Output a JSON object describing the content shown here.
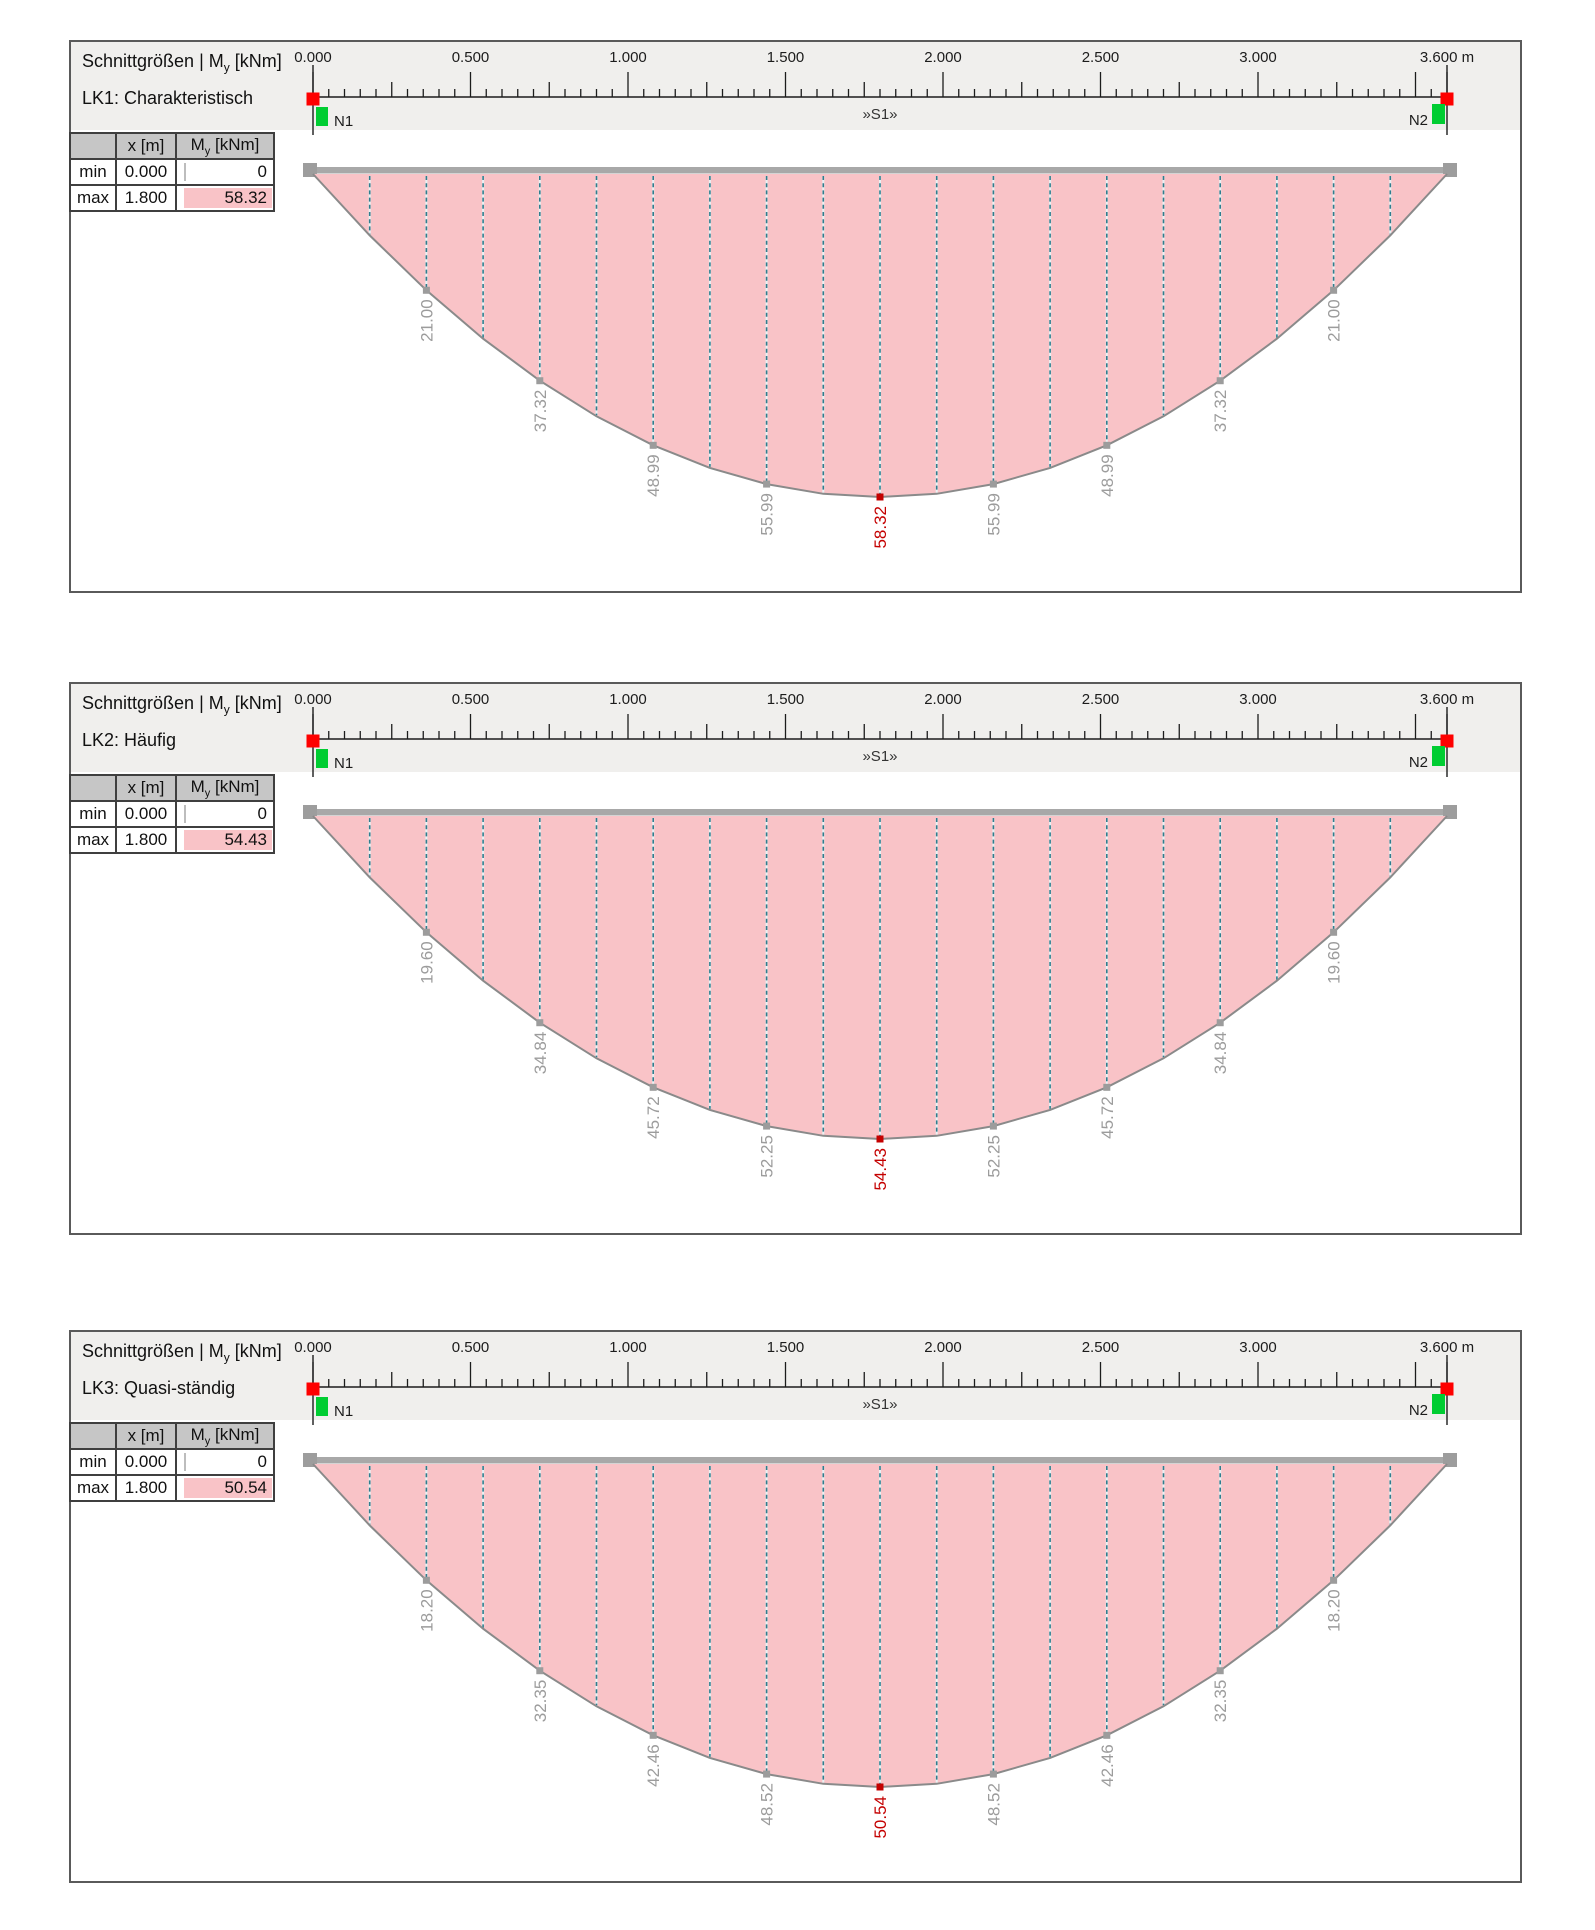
{
  "labels": {
    "title_name": "Schnittgrößen",
    "separator": "|",
    "moment_symbol": "M",
    "moment_sub": "y",
    "moment_unit": "[kNm]",
    "col_x": "x [m]",
    "row_min": "min",
    "row_max": "max",
    "node_start": "N1",
    "node_end": "N2",
    "member_label": "»S1»"
  },
  "ruler": {
    "length_m": 3.6,
    "minor_step_m": 0.05,
    "medium_step_m": 0.25,
    "major_step_m": 0.5,
    "labels": [
      {
        "v": 0.0,
        "t": "0.000"
      },
      {
        "v": 0.5,
        "t": "0.500"
      },
      {
        "v": 1.0,
        "t": "1.000"
      },
      {
        "v": 1.5,
        "t": "1.500"
      },
      {
        "v": 2.0,
        "t": "2.000"
      },
      {
        "v": 2.5,
        "t": "2.500"
      },
      {
        "v": 3.0,
        "t": "3.000"
      },
      {
        "v": 3.6,
        "t": "3.600 m"
      }
    ]
  },
  "colors": {
    "fill_pink": "#f9c3c7",
    "curve_grey": "#8a8a8a",
    "dash_teal": "#2f7e8e",
    "dash_underlay": "#e9f2f4",
    "label_grey": "#9c9c9c",
    "label_red": "#c40000",
    "node_red": "#fe0000",
    "node_green": "#00cd32",
    "beam_grey": "#a8a8a8",
    "beam_cap_grey": "#9d9d9d",
    "tick_black": "#1c1c1c"
  },
  "chart_data": [
    {
      "type": "area",
      "title": "Schnittgrößen | My [kNm]",
      "load_case": "LK1: Charakteristisch",
      "span_m": 3.6,
      "section_step_m": 0.18,
      "sections_x_m": [
        0.36,
        0.72,
        1.08,
        1.44,
        1.8,
        2.16,
        2.52,
        2.88,
        3.24
      ],
      "My_kNm": [
        21.0,
        37.32,
        48.99,
        55.99,
        58.32,
        55.99,
        48.99,
        37.32,
        21.0
      ],
      "min": {
        "x": 0.0,
        "My": 0
      },
      "max": {
        "x": 1.8,
        "My": 58.32
      },
      "table": {
        "min": {
          "x": "0.000",
          "My": "0"
        },
        "max": {
          "x": "1.800",
          "My": "58.32"
        }
      }
    },
    {
      "type": "area",
      "title": "Schnittgrößen | My [kNm]",
      "load_case": "LK2: Häufig",
      "span_m": 3.6,
      "section_step_m": 0.18,
      "sections_x_m": [
        0.36,
        0.72,
        1.08,
        1.44,
        1.8,
        2.16,
        2.52,
        2.88,
        3.24
      ],
      "My_kNm": [
        19.6,
        34.84,
        45.72,
        52.25,
        54.43,
        52.25,
        45.72,
        34.84,
        19.6
      ],
      "min": {
        "x": 0.0,
        "My": 0
      },
      "max": {
        "x": 1.8,
        "My": 54.43
      },
      "table": {
        "min": {
          "x": "0.000",
          "My": "0"
        },
        "max": {
          "x": "1.800",
          "My": "54.43"
        }
      }
    },
    {
      "type": "area",
      "title": "Schnittgrößen | My [kNm]",
      "load_case": "LK3: Quasi-ständig",
      "span_m": 3.6,
      "section_step_m": 0.18,
      "sections_x_m": [
        0.36,
        0.72,
        1.08,
        1.44,
        1.8,
        2.16,
        2.52,
        2.88,
        3.24
      ],
      "My_kNm": [
        18.2,
        32.35,
        42.46,
        48.52,
        50.54,
        48.52,
        42.46,
        32.35,
        18.2
      ],
      "min": {
        "x": 0.0,
        "My": 0
      },
      "max": {
        "x": 1.8,
        "My": 50.54
      },
      "table": {
        "min": {
          "x": "0.000",
          "My": "0"
        },
        "max": {
          "x": "1.800",
          "My": "50.54"
        }
      }
    }
  ]
}
